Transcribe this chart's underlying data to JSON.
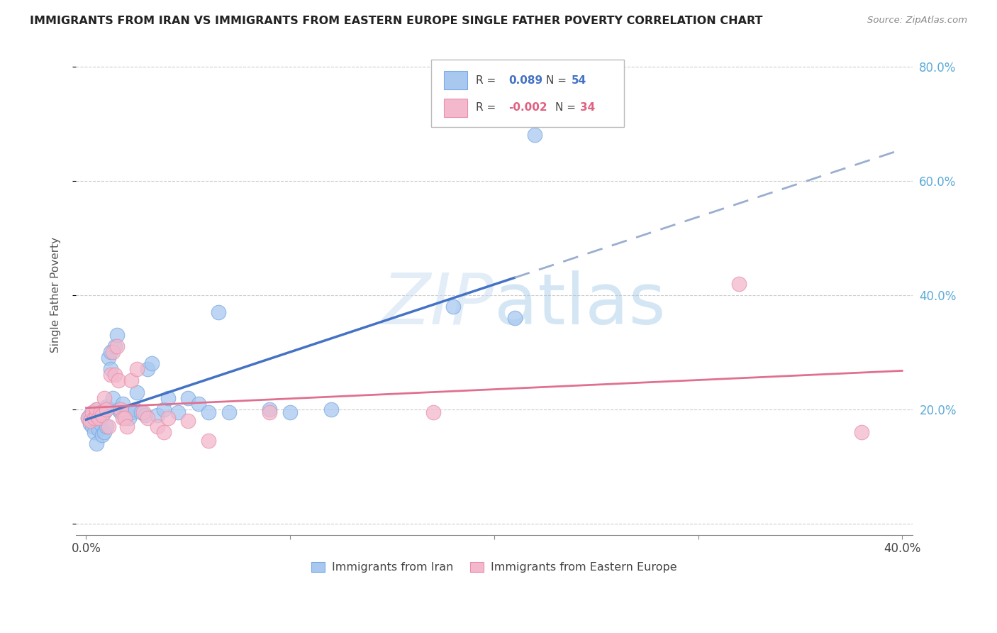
{
  "title": "IMMIGRANTS FROM IRAN VS IMMIGRANTS FROM EASTERN EUROPE SINGLE FATHER POVERTY CORRELATION CHART",
  "source": "Source: ZipAtlas.com",
  "ylabel": "Single Father Poverty",
  "xlim": [
    0.0,
    0.4
  ],
  "ylim": [
    0.0,
    0.8
  ],
  "color_iran": "#A8C8F0",
  "color_iran_edge": "#7AAAE0",
  "color_ee": "#F4B8CC",
  "color_ee_edge": "#E890A8",
  "color_iran_line": "#4472C4",
  "color_iran_dash": "#9AAED0",
  "color_ee_line": "#E07090",
  "watermark_color": "#C8DCF0",
  "grid_color": "#CCCCCC",
  "right_tick_color": "#5BAAD8",
  "iran_x": [
    0.001,
    0.002,
    0.002,
    0.003,
    0.003,
    0.004,
    0.004,
    0.005,
    0.005,
    0.005,
    0.006,
    0.006,
    0.007,
    0.007,
    0.008,
    0.008,
    0.009,
    0.009,
    0.01,
    0.01,
    0.011,
    0.012,
    0.012,
    0.013,
    0.014,
    0.015,
    0.016,
    0.017,
    0.018,
    0.019,
    0.02,
    0.021,
    0.022,
    0.024,
    0.025,
    0.027,
    0.029,
    0.03,
    0.032,
    0.035,
    0.038,
    0.04,
    0.045,
    0.05,
    0.055,
    0.06,
    0.065,
    0.07,
    0.09,
    0.1,
    0.12,
    0.18,
    0.21,
    0.22
  ],
  "iran_y": [
    0.185,
    0.175,
    0.19,
    0.17,
    0.18,
    0.16,
    0.185,
    0.14,
    0.18,
    0.2,
    0.19,
    0.165,
    0.175,
    0.195,
    0.155,
    0.195,
    0.16,
    0.195,
    0.17,
    0.205,
    0.29,
    0.3,
    0.27,
    0.22,
    0.31,
    0.33,
    0.2,
    0.195,
    0.21,
    0.19,
    0.195,
    0.185,
    0.195,
    0.2,
    0.23,
    0.195,
    0.19,
    0.27,
    0.28,
    0.19,
    0.2,
    0.22,
    0.195,
    0.22,
    0.21,
    0.195,
    0.37,
    0.195,
    0.2,
    0.195,
    0.2,
    0.38,
    0.36,
    0.68
  ],
  "ee_x": [
    0.001,
    0.002,
    0.003,
    0.004,
    0.005,
    0.005,
    0.006,
    0.007,
    0.008,
    0.009,
    0.01,
    0.011,
    0.012,
    0.013,
    0.014,
    0.015,
    0.016,
    0.017,
    0.018,
    0.019,
    0.02,
    0.022,
    0.025,
    0.028,
    0.03,
    0.035,
    0.038,
    0.04,
    0.05,
    0.06,
    0.09,
    0.17,
    0.32,
    0.38
  ],
  "ee_y": [
    0.185,
    0.18,
    0.195,
    0.185,
    0.19,
    0.2,
    0.185,
    0.195,
    0.19,
    0.22,
    0.2,
    0.17,
    0.26,
    0.3,
    0.26,
    0.31,
    0.25,
    0.2,
    0.185,
    0.185,
    0.17,
    0.25,
    0.27,
    0.195,
    0.185,
    0.17,
    0.16,
    0.185,
    0.18,
    0.145,
    0.195,
    0.195,
    0.42,
    0.16
  ],
  "x_tick_positions": [
    0.0,
    0.1,
    0.2,
    0.3,
    0.4
  ],
  "x_tick_labels": [
    "0.0%",
    "",
    "",
    "",
    "40.0%"
  ],
  "y_tick_positions": [
    0.0,
    0.2,
    0.4,
    0.6,
    0.8
  ],
  "y_right_labels": [
    "",
    "20.0%",
    "40.0%",
    "60.0%",
    "80.0%"
  ]
}
